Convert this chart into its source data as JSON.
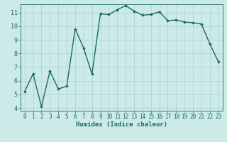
{
  "x": [
    0,
    1,
    2,
    3,
    4,
    5,
    6,
    7,
    8,
    9,
    10,
    11,
    12,
    13,
    14,
    15,
    16,
    17,
    18,
    19,
    20,
    21,
    22,
    23
  ],
  "y": [
    5.2,
    6.5,
    4.1,
    6.7,
    5.4,
    5.6,
    9.8,
    8.4,
    6.5,
    10.9,
    10.85,
    11.2,
    11.5,
    11.1,
    10.8,
    10.85,
    11.05,
    10.4,
    10.45,
    10.3,
    10.25,
    10.15,
    8.7,
    7.4
  ],
  "line_color": "#1a6b5e",
  "marker": "D",
  "marker_size": 1.8,
  "linewidth": 1.0,
  "bg_color": "#cceae7",
  "grid_color": "#aad4cf",
  "xlabel": "Humidex (Indice chaleur)",
  "ylim": [
    3.8,
    11.6
  ],
  "xlim": [
    -0.5,
    23.5
  ],
  "yticks": [
    4,
    5,
    6,
    7,
    8,
    9,
    10,
    11
  ],
  "xticks": [
    0,
    1,
    2,
    3,
    4,
    5,
    6,
    7,
    8,
    9,
    10,
    11,
    12,
    13,
    14,
    15,
    16,
    17,
    18,
    19,
    20,
    21,
    22,
    23
  ],
  "tick_color": "#1a6b5e",
  "label_fontsize": 6.5,
  "tick_fontsize": 5.5
}
